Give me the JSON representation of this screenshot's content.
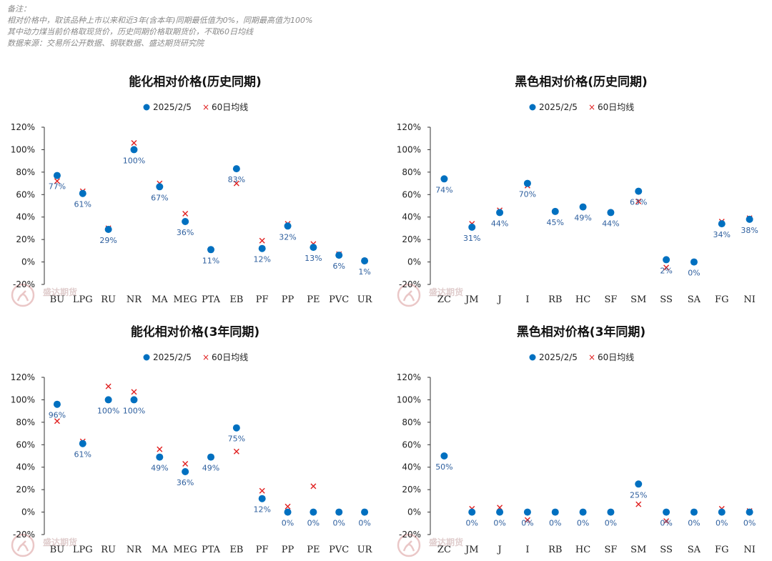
{
  "notes": [
    "备注：",
    "相对价格中，取该品种上市以来和近3年(含本年)同期最低值为0%，同期最高值为100%",
    "其中动力煤当前价格取现货价，历史同期价格取期货价，不取60日均线",
    "数据来源：交易所公开数据、钢联数据、盛达期货研究院"
  ],
  "watermark": "盛达期货",
  "colors": {
    "dot": "#0070c0",
    "cross": "#e02020",
    "label": "#2e5f9e",
    "axis": "#333333"
  },
  "chart_data": [
    {
      "type": "scatter",
      "title": "能化相对价格(历史同期)",
      "legend": [
        "2025/2/5",
        "60日均线"
      ],
      "legend_position": "top-center",
      "ylim": [
        -0.2,
        1.2
      ],
      "yticks": [
        "120%",
        "100%",
        "80%",
        "60%",
        "40%",
        "20%",
        "0%",
        "-20%"
      ],
      "grid": false,
      "categories": [
        "BU",
        "LPG",
        "RU",
        "NR",
        "MA",
        "MEG",
        "PTA",
        "EB",
        "PF",
        "PP",
        "PE",
        "PVC",
        "UR"
      ],
      "series": [
        {
          "name": "2025/2/5",
          "marker": "dot",
          "values": [
            0.77,
            0.61,
            0.29,
            1.0,
            0.67,
            0.36,
            0.11,
            0.83,
            0.12,
            0.32,
            0.13,
            0.06,
            0.01
          ]
        },
        {
          "name": "60日均线",
          "marker": "cross",
          "values": [
            0.72,
            0.63,
            0.3,
            1.06,
            0.7,
            0.43,
            0.11,
            0.7,
            0.19,
            0.34,
            0.16,
            0.07,
            0.01
          ]
        }
      ],
      "data_labels": [
        "77%",
        "61%",
        "29%",
        "100%",
        "67%",
        "36%",
        "11%",
        "83%",
        "12%",
        "32%",
        "13%",
        "6%",
        "1%"
      ]
    },
    {
      "type": "scatter",
      "title": "黑色相对价格(历史同期)",
      "legend": [
        "2025/2/5",
        "60日均线"
      ],
      "legend_position": "top-center",
      "ylim": [
        -0.2,
        1.2
      ],
      "yticks": [
        "120%",
        "100%",
        "80%",
        "60%",
        "40%",
        "20%",
        "0%",
        "-20%"
      ],
      "grid": false,
      "categories": [
        "ZC",
        "JM",
        "J",
        "I",
        "RB",
        "HC",
        "SF",
        "SM",
        "SS",
        "SA",
        "FG",
        "NI"
      ],
      "series": [
        {
          "name": "2025/2/5",
          "marker": "dot",
          "values": [
            0.74,
            0.31,
            0.44,
            0.7,
            0.45,
            0.49,
            0.44,
            0.63,
            0.02,
            0.0,
            0.34,
            0.38
          ]
        },
        {
          "name": "60日均线",
          "marker": "cross",
          "values": [
            null,
            0.34,
            0.46,
            0.68,
            0.45,
            0.49,
            0.44,
            0.54,
            -0.05,
            0.0,
            0.36,
            0.39
          ]
        }
      ],
      "data_labels": [
        "74%",
        "31%",
        "44%",
        "70%",
        "45%",
        "49%",
        "44%",
        "63%",
        "2%",
        "0%",
        "34%",
        "38%"
      ]
    },
    {
      "type": "scatter",
      "title": "能化相对价格(3年同期)",
      "legend": [
        "2025/2/5",
        "60日均线"
      ],
      "legend_position": "top-center",
      "ylim": [
        -0.2,
        1.2
      ],
      "yticks": [
        "120%",
        "100%",
        "80%",
        "60%",
        "40%",
        "20%",
        "0%",
        "-20%"
      ],
      "grid": false,
      "categories": [
        "BU",
        "LPG",
        "RU",
        "NR",
        "MA",
        "MEG",
        "PTA",
        "EB",
        "PF",
        "PP",
        "PE",
        "PVC",
        "UR"
      ],
      "series": [
        {
          "name": "2025/2/5",
          "marker": "dot",
          "values": [
            0.96,
            0.61,
            1.0,
            1.0,
            0.49,
            0.36,
            0.49,
            0.75,
            0.12,
            0.0,
            0.0,
            0.0,
            0.0
          ]
        },
        {
          "name": "60日均线",
          "marker": "cross",
          "values": [
            0.81,
            0.63,
            1.12,
            1.07,
            0.56,
            0.43,
            0.49,
            0.54,
            0.19,
            0.05,
            0.23,
            0.0,
            0.0
          ]
        }
      ],
      "data_labels": [
        "96%",
        "61%",
        "100%",
        "100%",
        "49%",
        "36%",
        "49%",
        "75%",
        "12%",
        "0%",
        "0%",
        "0%",
        "0%"
      ]
    },
    {
      "type": "scatter",
      "title": "黑色相对价格(3年同期)",
      "legend": [
        "2025/2/5",
        "60日均线"
      ],
      "legend_position": "top-center",
      "ylim": [
        -0.2,
        1.2
      ],
      "yticks": [
        "120%",
        "100%",
        "80%",
        "60%",
        "40%",
        "20%",
        "0%",
        "-20%"
      ],
      "grid": false,
      "categories": [
        "ZC",
        "JM",
        "J",
        "I",
        "RB",
        "HC",
        "SF",
        "SM",
        "SS",
        "SA",
        "FG",
        "NI"
      ],
      "series": [
        {
          "name": "2025/2/5",
          "marker": "dot",
          "values": [
            0.5,
            0.0,
            0.0,
            0.0,
            0.0,
            0.0,
            0.0,
            0.25,
            0.0,
            0.0,
            0.0,
            0.0
          ]
        },
        {
          "name": "60日均线",
          "marker": "cross",
          "values": [
            null,
            0.03,
            0.04,
            -0.07,
            0.0,
            0.0,
            0.0,
            0.07,
            -0.08,
            0.0,
            0.03,
            0.01
          ]
        }
      ],
      "data_labels": [
        "50%",
        "0%",
        "0%",
        "0%",
        "0%",
        "0%",
        "0%",
        "25%",
        "0%",
        "0%",
        "0%",
        "0%"
      ]
    }
  ]
}
